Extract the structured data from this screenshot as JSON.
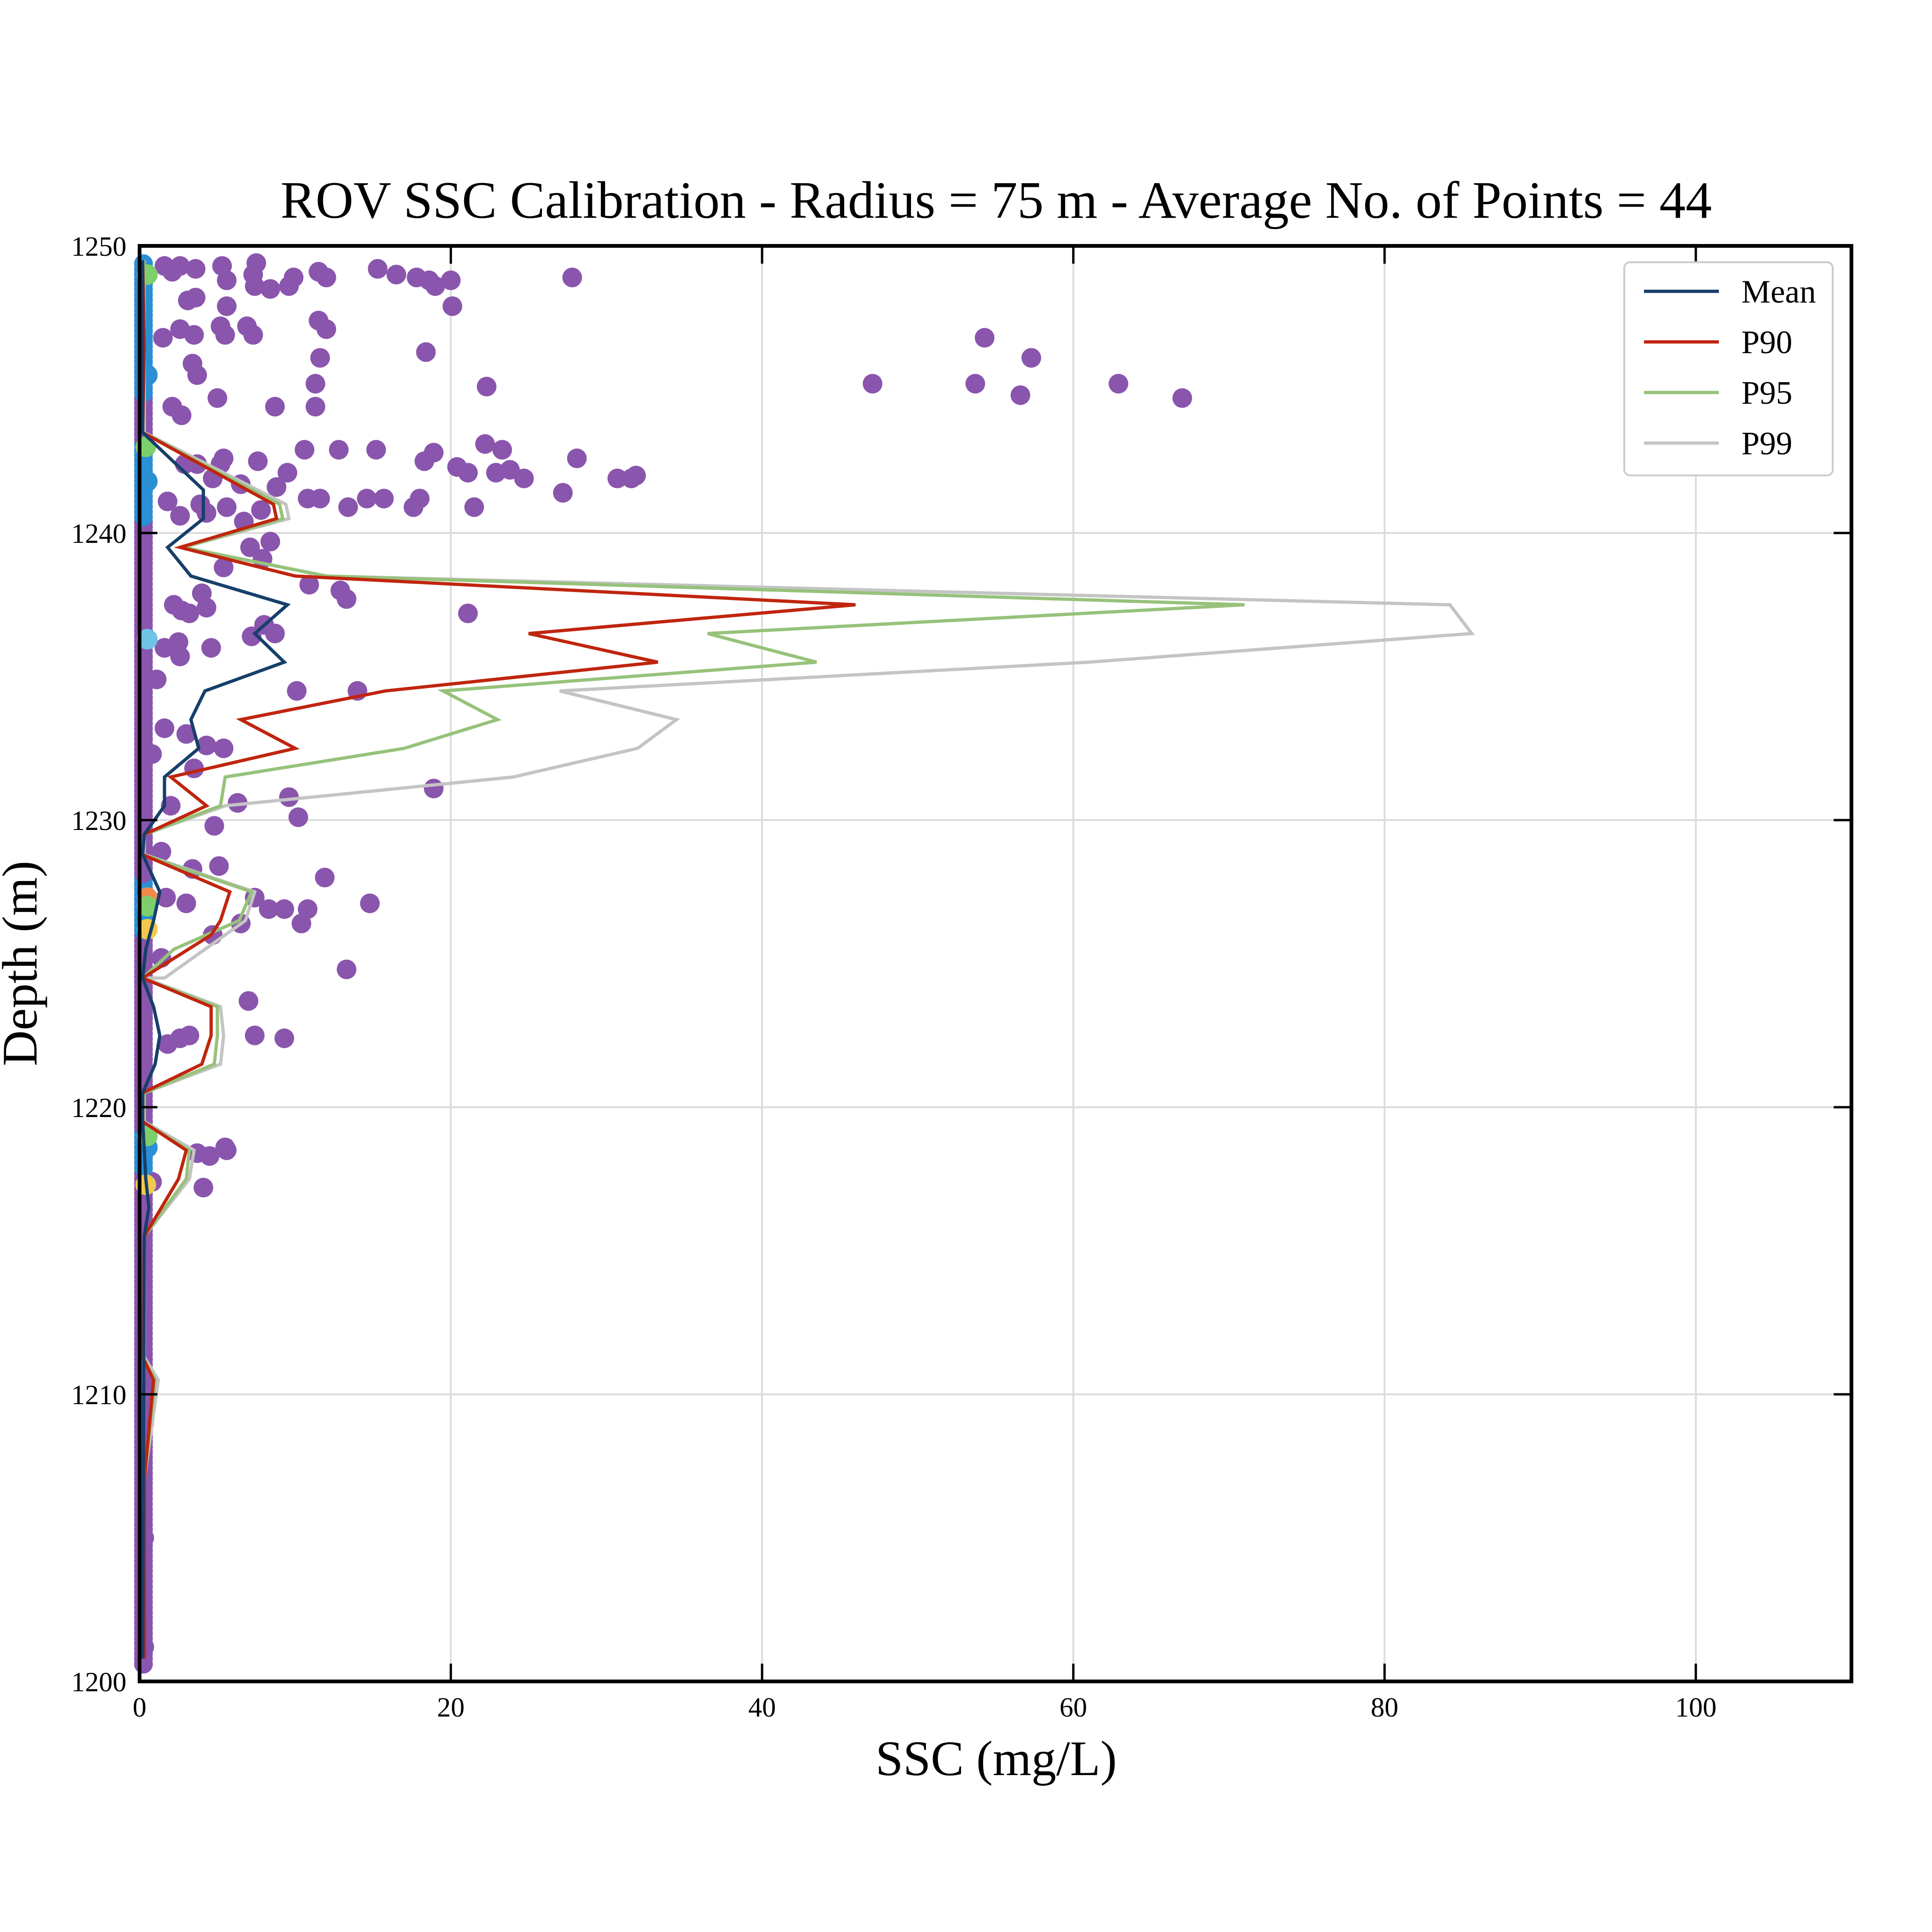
{
  "chart_data": {
    "type": "scatter",
    "title": "ROV SSC Calibration - Radius = 75 m - Average No. of Points = 44",
    "xlabel": "SSC (mg/L)",
    "ylabel": "Depth (m)",
    "xlim": [
      0,
      110
    ],
    "ylim": [
      1200,
      1250
    ],
    "xticks": [
      "0",
      "20",
      "40",
      "60",
      "80",
      "100"
    ],
    "yticks": [
      "1200",
      "1210",
      "1220",
      "1230",
      "1240",
      "1250"
    ],
    "grid": true,
    "legend_position": "top-right",
    "colors": {
      "Mean": "#173f6a",
      "P90": "#c0250e",
      "P95": "#96c27a",
      "P99": "#c4c4c4",
      "points_low_density": "#8a55ad",
      "points_mid_density": "#2a8fd4",
      "points_high_density": "#f2c94c"
    },
    "series": [
      {
        "name": "Mean",
        "points": [
          [
            0.2,
            1200.8
          ],
          [
            0.3,
            1215.5
          ],
          [
            0.6,
            1216.5
          ],
          [
            0.4,
            1217.5
          ],
          [
            0.2,
            1219.5
          ],
          [
            0.2,
            1220.5
          ],
          [
            1.0,
            1221.5
          ],
          [
            1.3,
            1222.5
          ],
          [
            0.9,
            1223.5
          ],
          [
            0.2,
            1224.5
          ],
          [
            0.4,
            1225.5
          ],
          [
            0.9,
            1226.5
          ],
          [
            1.3,
            1227.5
          ],
          [
            0.2,
            1228.8
          ],
          [
            0.3,
            1229.5
          ],
          [
            1.6,
            1230.5
          ],
          [
            1.6,
            1231.5
          ],
          [
            3.8,
            1232.5
          ],
          [
            3.3,
            1233.5
          ],
          [
            4.2,
            1234.5
          ],
          [
            9.3,
            1235.5
          ],
          [
            7.4,
            1236.5
          ],
          [
            9.5,
            1237.5
          ],
          [
            3.3,
            1238.5
          ],
          [
            1.8,
            1239.5
          ],
          [
            4.1,
            1240.5
          ],
          [
            4.1,
            1241.5
          ],
          [
            0.2,
            1243.5
          ],
          [
            0.2,
            1246.5
          ],
          [
            0.2,
            1249.5
          ]
        ]
      },
      {
        "name": "P90",
        "points": [
          [
            0.3,
            1200.8
          ],
          [
            0.3,
            1207.0
          ],
          [
            0.9,
            1210.5
          ],
          [
            0.2,
            1211.3
          ],
          [
            0.3,
            1215.5
          ],
          [
            2.5,
            1217.5
          ],
          [
            3.0,
            1218.5
          ],
          [
            0.2,
            1219.5
          ],
          [
            0.2,
            1220.5
          ],
          [
            4.0,
            1221.5
          ],
          [
            4.6,
            1222.5
          ],
          [
            4.6,
            1223.5
          ],
          [
            0.2,
            1224.5
          ],
          [
            4.6,
            1226.0
          ],
          [
            5.2,
            1226.5
          ],
          [
            5.8,
            1227.5
          ],
          [
            0.2,
            1228.8
          ],
          [
            0.3,
            1229.5
          ],
          [
            4.3,
            1230.5
          ],
          [
            2.0,
            1231.5
          ],
          [
            10.0,
            1232.5
          ],
          [
            6.5,
            1233.5
          ],
          [
            15.8,
            1234.5
          ],
          [
            33.3,
            1235.5
          ],
          [
            25.0,
            1236.5
          ],
          [
            46.0,
            1237.5
          ],
          [
            10.0,
            1238.5
          ],
          [
            2.6,
            1239.5
          ],
          [
            8.8,
            1240.5
          ],
          [
            8.6,
            1241.0
          ],
          [
            0.2,
            1243.5
          ],
          [
            0.3,
            1246.5
          ],
          [
            0.2,
            1249.5
          ]
        ]
      },
      {
        "name": "P95",
        "points": [
          [
            0.3,
            1200.8
          ],
          [
            0.3,
            1207.0
          ],
          [
            1.0,
            1210.5
          ],
          [
            0.2,
            1211.3
          ],
          [
            0.3,
            1215.5
          ],
          [
            3.0,
            1217.5
          ],
          [
            3.2,
            1218.5
          ],
          [
            0.2,
            1219.5
          ],
          [
            0.3,
            1220.5
          ],
          [
            4.8,
            1221.5
          ],
          [
            5.0,
            1222.5
          ],
          [
            5.0,
            1223.5
          ],
          [
            0.2,
            1224.5
          ],
          [
            2.2,
            1225.5
          ],
          [
            6.4,
            1226.5
          ],
          [
            7.2,
            1227.5
          ],
          [
            0.2,
            1228.8
          ],
          [
            0.3,
            1229.5
          ],
          [
            5.2,
            1230.5
          ],
          [
            5.5,
            1231.5
          ],
          [
            17.0,
            1232.5
          ],
          [
            23.0,
            1233.5
          ],
          [
            19.5,
            1234.5
          ],
          [
            43.5,
            1235.5
          ],
          [
            36.5,
            1236.5
          ],
          [
            71.0,
            1237.5
          ],
          [
            12.0,
            1238.5
          ],
          [
            2.8,
            1239.5
          ],
          [
            9.2,
            1240.5
          ],
          [
            9.0,
            1241.0
          ],
          [
            0.2,
            1243.5
          ],
          [
            0.3,
            1246.5
          ],
          [
            0.3,
            1249.5
          ]
        ]
      },
      {
        "name": "P99",
        "points": [
          [
            0.3,
            1200.8
          ],
          [
            0.3,
            1207.0
          ],
          [
            1.2,
            1210.5
          ],
          [
            0.3,
            1211.3
          ],
          [
            0.3,
            1215.5
          ],
          [
            3.2,
            1217.5
          ],
          [
            3.5,
            1218.5
          ],
          [
            0.3,
            1219.5
          ],
          [
            0.3,
            1220.5
          ],
          [
            5.2,
            1221.5
          ],
          [
            5.4,
            1222.5
          ],
          [
            5.2,
            1223.5
          ],
          [
            0.3,
            1224.5
          ],
          [
            1.6,
            1224.5
          ],
          [
            6.8,
            1226.5
          ],
          [
            7.4,
            1227.5
          ],
          [
            0.3,
            1228.8
          ],
          [
            0.3,
            1229.5
          ],
          [
            5.5,
            1230.5
          ],
          [
            24.0,
            1231.5
          ],
          [
            32.0,
            1232.5
          ],
          [
            34.5,
            1233.5
          ],
          [
            27.0,
            1234.5
          ],
          [
            61.0,
            1235.5
          ],
          [
            85.6,
            1236.5
          ],
          [
            84.2,
            1237.5
          ],
          [
            12.0,
            1238.5
          ],
          [
            2.8,
            1239.5
          ],
          [
            9.6,
            1240.5
          ],
          [
            9.4,
            1241.0
          ],
          [
            0.3,
            1243.5
          ],
          [
            0.3,
            1246.5
          ],
          [
            0.3,
            1249.5
          ]
        ]
      }
    ],
    "scatter_points": [
      [
        27.8,
        1248.9
      ],
      [
        20.0,
        1248.8
      ],
      [
        18.6,
        1248.8
      ],
      [
        16.5,
        1249.0
      ],
      [
        15.3,
        1249.2
      ],
      [
        17.8,
        1248.9
      ],
      [
        19.0,
        1248.6
      ],
      [
        11.5,
        1249.1
      ],
      [
        12.0,
        1248.9
      ],
      [
        9.9,
        1248.9
      ],
      [
        9.6,
        1248.6
      ],
      [
        8.4,
        1248.5
      ],
      [
        7.3,
        1249.0
      ],
      [
        7.5,
        1249.4
      ],
      [
        5.3,
        1249.3
      ],
      [
        3.6,
        1249.2
      ],
      [
        2.1,
        1249.1
      ],
      [
        1.6,
        1249.3
      ],
      [
        2.6,
        1249.3
      ],
      [
        5.6,
        1248.8
      ],
      [
        7.4,
        1248.6
      ],
      [
        3.1,
        1248.1
      ],
      [
        3.6,
        1248.2
      ],
      [
        20.1,
        1247.9
      ],
      [
        5.6,
        1247.9
      ],
      [
        11.5,
        1247.4
      ],
      [
        12.0,
        1247.1
      ],
      [
        5.2,
        1247.2
      ],
      [
        5.5,
        1246.9
      ],
      [
        6.9,
        1247.2
      ],
      [
        7.3,
        1246.9
      ],
      [
        2.6,
        1247.1
      ],
      [
        3.5,
        1246.9
      ],
      [
        1.5,
        1246.8
      ],
      [
        18.4,
        1246.3
      ],
      [
        3.4,
        1245.9
      ],
      [
        11.6,
        1246.1
      ],
      [
        3.7,
        1245.5
      ],
      [
        22.3,
        1245.1
      ],
      [
        11.3,
        1245.2
      ],
      [
        5.0,
        1244.7
      ],
      [
        8.7,
        1244.4
      ],
      [
        11.3,
        1244.4
      ],
      [
        2.1,
        1244.4
      ],
      [
        2.7,
        1244.1
      ],
      [
        54.3,
        1246.8
      ],
      [
        57.3,
        1246.1
      ],
      [
        47.1,
        1245.2
      ],
      [
        53.7,
        1245.2
      ],
      [
        56.6,
        1244.8
      ],
      [
        62.9,
        1245.2
      ],
      [
        67.0,
        1244.7
      ],
      [
        28.1,
        1242.6
      ],
      [
        22.2,
        1243.1
      ],
      [
        23.3,
        1242.9
      ],
      [
        18.9,
        1242.8
      ],
      [
        18.3,
        1242.5
      ],
      [
        15.2,
        1242.9
      ],
      [
        12.8,
        1242.9
      ],
      [
        10.6,
        1242.9
      ],
      [
        20.4,
        1242.3
      ],
      [
        21.1,
        1242.1
      ],
      [
        22.9,
        1242.1
      ],
      [
        23.8,
        1242.2
      ],
      [
        24.7,
        1241.9
      ],
      [
        30.7,
        1241.9
      ],
      [
        31.6,
        1241.9
      ],
      [
        31.9,
        1242.0
      ],
      [
        27.2,
        1241.4
      ],
      [
        18.0,
        1241.2
      ],
      [
        17.6,
        1240.9
      ],
      [
        15.7,
        1241.2
      ],
      [
        14.6,
        1241.2
      ],
      [
        21.5,
        1240.9
      ],
      [
        13.4,
        1240.9
      ],
      [
        10.8,
        1241.2
      ],
      [
        11.6,
        1241.2
      ],
      [
        9.5,
        1242.1
      ],
      [
        8.8,
        1241.6
      ],
      [
        7.6,
        1242.5
      ],
      [
        5.4,
        1242.6
      ],
      [
        5.2,
        1242.4
      ],
      [
        3.7,
        1242.4
      ],
      [
        2.9,
        1242.4
      ],
      [
        4.7,
        1241.9
      ],
      [
        6.5,
        1241.7
      ],
      [
        7.8,
        1240.8
      ],
      [
        6.7,
        1240.4
      ],
      [
        5.6,
        1240.9
      ],
      [
        4.3,
        1240.7
      ],
      [
        3.9,
        1241.0
      ],
      [
        2.6,
        1240.6
      ],
      [
        1.8,
        1241.1
      ],
      [
        7.1,
        1239.5
      ],
      [
        8.4,
        1239.7
      ],
      [
        7.9,
        1239.1
      ],
      [
        5.4,
        1238.8
      ],
      [
        4.0,
        1237.9
      ],
      [
        12.9,
        1238.0
      ],
      [
        10.9,
        1238.2
      ],
      [
        13.3,
        1237.7
      ],
      [
        21.1,
        1237.2
      ],
      [
        8.0,
        1236.8
      ],
      [
        8.7,
        1236.5
      ],
      [
        4.3,
        1237.4
      ],
      [
        2.2,
        1237.5
      ],
      [
        3.2,
        1237.2
      ],
      [
        2.7,
        1237.3
      ],
      [
        7.2,
        1236.4
      ],
      [
        4.6,
        1236.0
      ],
      [
        2.5,
        1236.2
      ],
      [
        1.6,
        1236.0
      ],
      [
        2.6,
        1235.7
      ],
      [
        10.1,
        1234.5
      ],
      [
        14.0,
        1234.5
      ],
      [
        1.1,
        1234.9
      ],
      [
        3.0,
        1233.0
      ],
      [
        1.6,
        1233.2
      ],
      [
        4.3,
        1232.6
      ],
      [
        5.4,
        1232.5
      ],
      [
        0.8,
        1232.3
      ],
      [
        3.5,
        1231.8
      ],
      [
        18.9,
        1231.1
      ],
      [
        9.6,
        1230.8
      ],
      [
        6.3,
        1230.6
      ],
      [
        10.2,
        1230.1
      ],
      [
        2.0,
        1230.5
      ],
      [
        4.8,
        1229.8
      ],
      [
        1.4,
        1228.9
      ],
      [
        3.4,
        1228.3
      ],
      [
        5.1,
        1228.4
      ],
      [
        11.9,
        1228.0
      ],
      [
        7.4,
        1227.3
      ],
      [
        9.3,
        1226.9
      ],
      [
        10.8,
        1226.9
      ],
      [
        8.3,
        1226.9
      ],
      [
        14.8,
        1227.1
      ],
      [
        10.4,
        1226.4
      ],
      [
        6.5,
        1226.4
      ],
      [
        3.0,
        1227.1
      ],
      [
        1.7,
        1227.3
      ],
      [
        4.7,
        1226.0
      ],
      [
        1.4,
        1225.2
      ],
      [
        13.3,
        1224.8
      ],
      [
        7.0,
        1223.7
      ],
      [
        9.3,
        1222.4
      ],
      [
        7.4,
        1222.5
      ],
      [
        3.2,
        1222.5
      ],
      [
        2.6,
        1222.4
      ],
      [
        1.8,
        1222.2
      ],
      [
        3.7,
        1218.4
      ],
      [
        4.5,
        1218.3
      ],
      [
        5.5,
        1218.6
      ],
      [
        5.6,
        1218.5
      ],
      [
        4.1,
        1217.2
      ],
      [
        0.8,
        1217.4
      ],
      [
        0.3,
        1209.0
      ],
      [
        0.3,
        1205.0
      ],
      [
        0.3,
        1201.2
      ]
    ],
    "dense_points": [
      {
        "x": 0.5,
        "y": 1249.0,
        "density": "high-green"
      },
      {
        "x": 0.5,
        "y": 1245.5,
        "density": "mid"
      },
      {
        "x": 0.4,
        "y": 1243.0,
        "density": "high-green"
      },
      {
        "x": 0.5,
        "y": 1241.8,
        "density": "mid"
      },
      {
        "x": 0.5,
        "y": 1236.3,
        "density": "light"
      },
      {
        "x": 0.5,
        "y": 1227.3,
        "density": "high-orange"
      },
      {
        "x": 0.5,
        "y": 1227.0,
        "density": "high-green"
      },
      {
        "x": 0.5,
        "y": 1226.2,
        "density": "high-yellow"
      },
      {
        "x": 0.5,
        "y": 1218.6,
        "density": "mid"
      },
      {
        "x": 0.5,
        "y": 1219.0,
        "density": "high-green"
      },
      {
        "x": 0.4,
        "y": 1217.3,
        "density": "high-yellow"
      }
    ]
  }
}
